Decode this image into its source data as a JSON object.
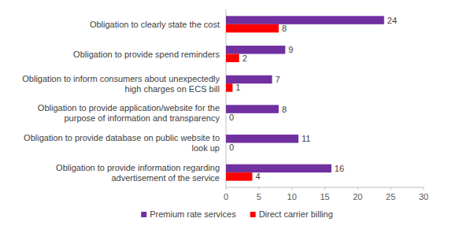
{
  "chart_data": {
    "type": "bar",
    "orientation": "horizontal",
    "categories": [
      "Obligation to clearly state the cost",
      "Obligation to provide spend reminders",
      "Obligation to inform consumers about unexpectedly high charges on ECS bill",
      "Obligation to provide application/website for the purpose of information and transparency",
      "Obligation to provide database on public website to look up",
      "Obligation to provide information regarding advertisement of the service"
    ],
    "series": [
      {
        "name": "Premium rate services",
        "color": "#7030a0",
        "values": [
          24,
          9,
          7,
          8,
          11,
          16
        ]
      },
      {
        "name": "Direct carrier billing",
        "color": "#ff0000",
        "values": [
          8,
          2,
          1,
          0,
          0,
          4
        ]
      }
    ],
    "xlim": [
      0,
      30
    ],
    "xticks": [
      0,
      5,
      10,
      15,
      20,
      25,
      30
    ],
    "grid": false,
    "legend": "bottom",
    "data_labels": true
  }
}
